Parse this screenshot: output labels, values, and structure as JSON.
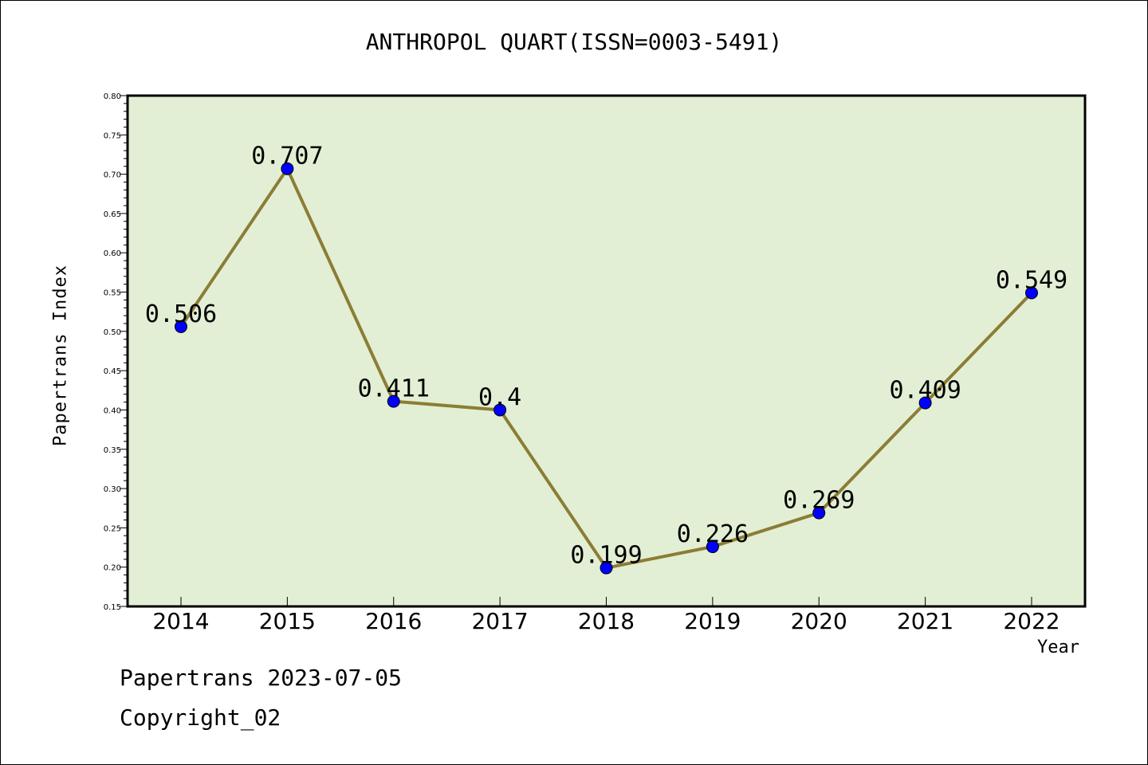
{
  "chart_data": {
    "type": "line",
    "title": "ANTHROPOL QUART(ISSN=0003-5491)",
    "xlabel": "Year",
    "ylabel": "Papertrans Index",
    "categories": [
      "2014",
      "2015",
      "2016",
      "2017",
      "2018",
      "2019",
      "2020",
      "2021",
      "2022"
    ],
    "values": [
      0.506,
      0.707,
      0.411,
      0.4,
      0.199,
      0.226,
      0.269,
      0.409,
      0.549
    ],
    "data_labels": [
      "0.506",
      "0.707",
      "0.411",
      "0.4",
      "0.199",
      "0.226",
      "0.269",
      "0.409",
      "0.549"
    ],
    "ylim": [
      0.15,
      0.8
    ],
    "yticks": [
      "0.15",
      "0.20",
      "0.25",
      "0.30",
      "0.35",
      "0.40",
      "0.45",
      "0.50",
      "0.55",
      "0.60",
      "0.65",
      "0.70",
      "0.75",
      "0.80"
    ],
    "grid": false,
    "legend": "none",
    "colors": {
      "plot_background": "#e2efd5",
      "line": "#8b7d35",
      "marker": "#0000ff",
      "axis": "#000000"
    }
  },
  "footer": {
    "date_line": "Papertrans 2023-07-05",
    "copyright_line": "Copyright_02"
  }
}
